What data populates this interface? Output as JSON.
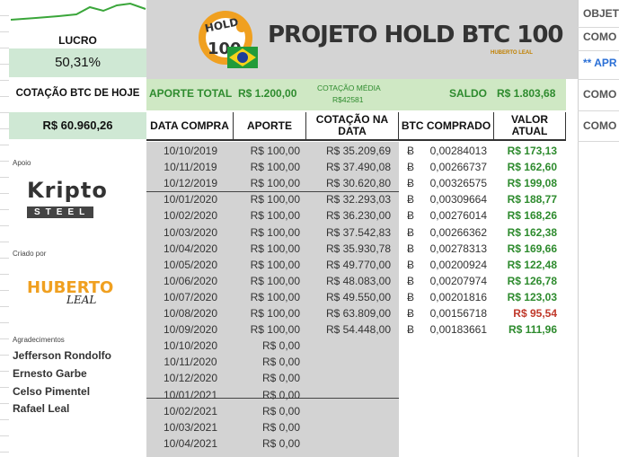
{
  "left": {
    "lucro_label": "LUCRO",
    "lucro_value": "50,31%",
    "cotacao_label": "COTAÇÃO BTC DE HOJE",
    "cotacao_value": "R$ 60.960,26",
    "apoio_label": "Apoio",
    "kripto_word": "Kripto",
    "steel_word": "STEEL",
    "criado_label": "Criado por",
    "huberto_word": "HUBERTO",
    "leal_word": "LEAL",
    "agrad_label": "Agradecimentos",
    "thanks": [
      "Jefferson Rondolfo",
      "Ernesto Garbe",
      "Celso Pimentel",
      "Rafael Leal"
    ]
  },
  "header": {
    "logo_hold": "HOLD",
    "logo_100": "100",
    "title": "PROJETO HOLD BTC 100",
    "brand_mini": "HUBERTO LEAL"
  },
  "summary": {
    "aporte_total_label": "APORTE TOTAL",
    "aporte_total_value": "R$ 1.200,00",
    "cotacao_media_label": "COTAÇÃO MÉDIA",
    "cotacao_media_value": "R$42581",
    "saldo_label": "SALDO",
    "saldo_value": "R$ 1.803,68"
  },
  "table": {
    "headers": [
      "DATA COMPRA",
      "APORTE",
      "COTAÇÃO NA DATA",
      "BTC COMPRADO",
      "VALOR ATUAL"
    ],
    "btc_symbol": "Ƀ",
    "rows": [
      {
        "date": "10/10/2019",
        "aporte": "R$ 100,00",
        "cotacao": "R$ 35.209,69",
        "btc": "0,00284013",
        "valor": "R$ 173,13",
        "status": "up"
      },
      {
        "date": "10/11/2019",
        "aporte": "R$ 100,00",
        "cotacao": "R$ 37.490,08",
        "btc": "0,00266737",
        "valor": "R$ 162,60",
        "status": "up"
      },
      {
        "date": "10/12/2019",
        "aporte": "R$ 100,00",
        "cotacao": "R$ 30.620,80",
        "btc": "0,00326575",
        "valor": "R$ 199,08",
        "status": "up"
      },
      {
        "date": "10/01/2020",
        "aporte": "R$ 100,00",
        "cotacao": "R$ 32.293,03",
        "btc": "0,00309664",
        "valor": "R$ 188,77",
        "status": "up"
      },
      {
        "date": "10/02/2020",
        "aporte": "R$ 100,00",
        "cotacao": "R$ 36.230,00",
        "btc": "0,00276014",
        "valor": "R$ 168,26",
        "status": "up"
      },
      {
        "date": "10/03/2020",
        "aporte": "R$ 100,00",
        "cotacao": "R$ 37.542,83",
        "btc": "0,00266362",
        "valor": "R$ 162,38",
        "status": "up"
      },
      {
        "date": "10/04/2020",
        "aporte": "R$ 100,00",
        "cotacao": "R$ 35.930,78",
        "btc": "0,00278313",
        "valor": "R$ 169,66",
        "status": "up"
      },
      {
        "date": "10/05/2020",
        "aporte": "R$ 100,00",
        "cotacao": "R$ 49.770,00",
        "btc": "0,00200924",
        "valor": "R$ 122,48",
        "status": "up"
      },
      {
        "date": "10/06/2020",
        "aporte": "R$ 100,00",
        "cotacao": "R$ 48.083,00",
        "btc": "0,00207974",
        "valor": "R$ 126,78",
        "status": "up"
      },
      {
        "date": "10/07/2020",
        "aporte": "R$ 100,00",
        "cotacao": "R$ 49.550,00",
        "btc": "0,00201816",
        "valor": "R$ 123,03",
        "status": "up"
      },
      {
        "date": "10/08/2020",
        "aporte": "R$ 100,00",
        "cotacao": "R$ 63.809,00",
        "btc": "0,00156718",
        "valor": "R$ 95,54",
        "status": "down"
      },
      {
        "date": "10/09/2020",
        "aporte": "R$ 100,00",
        "cotacao": "R$ 54.448,00",
        "btc": "0,00183661",
        "valor": "R$ 111,96",
        "status": "up"
      },
      {
        "date": "10/10/2020",
        "aporte": "R$ 0,00",
        "cotacao": "",
        "btc": "",
        "valor": "",
        "status": "none"
      },
      {
        "date": "10/11/2020",
        "aporte": "R$ 0,00",
        "cotacao": "",
        "btc": "",
        "valor": "",
        "status": "none"
      },
      {
        "date": "10/12/2020",
        "aporte": "R$ 0,00",
        "cotacao": "",
        "btc": "",
        "valor": "",
        "status": "none"
      },
      {
        "date": "10/01/2021",
        "aporte": "R$ 0,00",
        "cotacao": "",
        "btc": "",
        "valor": "",
        "status": "none"
      },
      {
        "date": "10/02/2021",
        "aporte": "R$ 0,00",
        "cotacao": "",
        "btc": "",
        "valor": "",
        "status": "none"
      },
      {
        "date": "10/03/2021",
        "aporte": "R$ 0,00",
        "cotacao": "",
        "btc": "",
        "valor": "",
        "status": "none"
      },
      {
        "date": "10/04/2021",
        "aporte": "R$ 0,00",
        "cotacao": "",
        "btc": "",
        "valor": "",
        "status": "none"
      }
    ]
  },
  "right": {
    "items": [
      "OBJET",
      "COMO",
      "** APR",
      "COMO",
      "COMO"
    ]
  },
  "colors": {
    "green_cell": "#cfe8d4",
    "header_grey": "#d4d4d4",
    "positive_green": "#2e8b2e",
    "negative_red": "#c0392b",
    "brand_orange": "#f0a020"
  }
}
